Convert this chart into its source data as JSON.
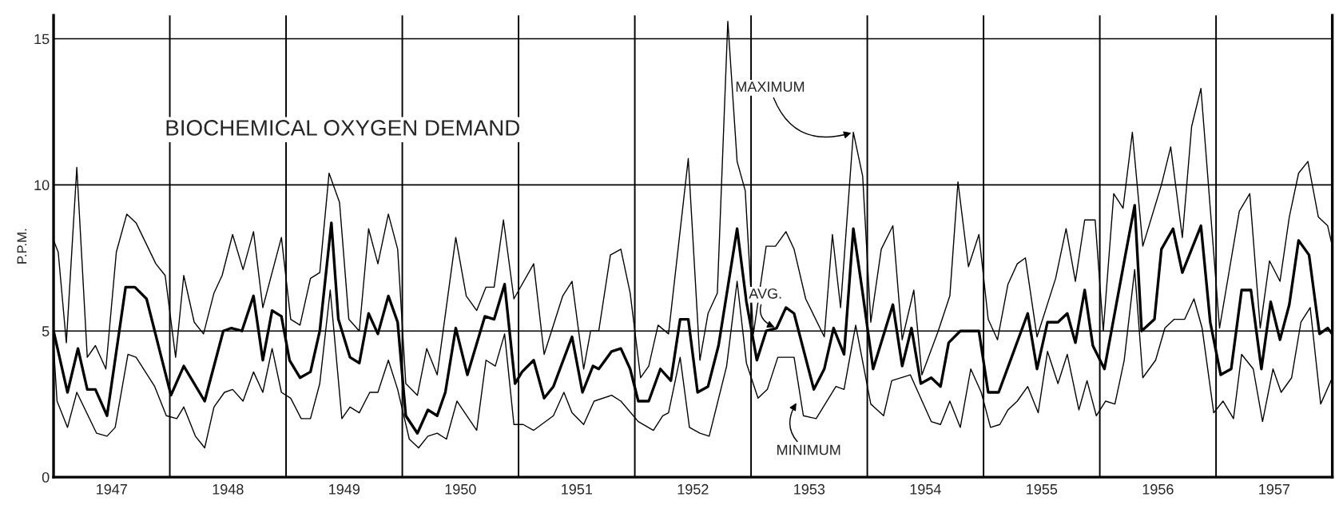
{
  "chart_data": {
    "type": "line",
    "title": "BIOCHEMICAL OXYGEN DEMAND",
    "ylabel": "P.P.M.",
    "xlim": [
      1947,
      1958
    ],
    "ylim": [
      0,
      15.8
    ],
    "yticks": [
      0,
      5,
      10,
      15
    ],
    "xticks": [
      {
        "value": 1947.5,
        "label": "1947"
      },
      {
        "value": 1948.5,
        "label": "1948"
      },
      {
        "value": 1949.5,
        "label": "1949"
      },
      {
        "value": 1950.5,
        "label": "1950"
      },
      {
        "value": 1951.5,
        "label": "1951"
      },
      {
        "value": 1952.5,
        "label": "1952"
      },
      {
        "value": 1953.5,
        "label": "1953"
      },
      {
        "value": 1954.5,
        "label": "1954"
      },
      {
        "value": 1955.5,
        "label": "1955"
      },
      {
        "value": 1956.5,
        "label": "1956"
      },
      {
        "value": 1957.5,
        "label": "1957"
      }
    ],
    "grid": "y",
    "legend": false,
    "ref_lines": [
      {
        "axis": "x",
        "value": 1948
      },
      {
        "axis": "x",
        "value": 1949
      },
      {
        "axis": "x",
        "value": 1950
      },
      {
        "axis": "x",
        "value": 1951
      },
      {
        "axis": "x",
        "value": 1952
      },
      {
        "axis": "x",
        "value": 1953
      },
      {
        "axis": "x",
        "value": 1954
      },
      {
        "axis": "x",
        "value": 1955
      },
      {
        "axis": "x",
        "value": 1956
      },
      {
        "axis": "x",
        "value": 1957
      }
    ],
    "annotations": [
      {
        "text": "MAXIMUM",
        "x": 1953.88,
        "y": 11.8
      },
      {
        "text": "AVG.",
        "x": 1953.22,
        "y": 5.1
      },
      {
        "text": "MINIMUM",
        "x": 1953.4,
        "y": 2.6
      }
    ],
    "series": [
      {
        "color": "#000000",
        "x": [
          1947.0,
          1947.04,
          1947.11,
          1947.2,
          1947.29,
          1947.36,
          1947.45,
          1947.54,
          1947.63,
          1947.71,
          1947.88,
          1947.96,
          1948.05,
          1948.12,
          1948.21,
          1948.29,
          1948.38,
          1948.45,
          1948.54,
          1948.63,
          1948.72,
          1948.8,
          1948.96,
          1949.04,
          1949.12,
          1949.21,
          1949.29,
          1949.37,
          1949.46,
          1949.54,
          1949.63,
          1949.71,
          1949.79,
          1949.88,
          1949.96,
          1950.03,
          1950.13,
          1950.21,
          1950.3,
          1950.46,
          1950.55,
          1950.64,
          1950.72,
          1950.79,
          1950.87,
          1950.96,
          1951.13,
          1951.22,
          1951.38,
          1951.46,
          1951.56,
          1951.62,
          1951.69,
          1951.79,
          1951.88,
          1951.96,
          1952.05,
          1952.12,
          1952.2,
          1952.29,
          1952.46,
          1952.56,
          1952.63,
          1952.71,
          1952.8,
          1952.88,
          1952.95,
          1953.02,
          1953.13,
          1953.21,
          1953.3,
          1953.37,
          1953.47,
          1953.63,
          1953.7,
          1953.77,
          1953.88,
          1953.96,
          1954.03,
          1954.12,
          1954.22,
          1954.3,
          1954.4,
          1954.47,
          1954.61,
          1954.71,
          1954.78,
          1954.87,
          1954.96,
          1955.04,
          1955.12,
          1955.21,
          1955.29,
          1955.36,
          1955.46,
          1955.62,
          1955.71,
          1955.79,
          1955.87,
          1955.96,
          1956.03,
          1956.12,
          1956.2,
          1956.28,
          1956.37,
          1956.53,
          1956.61,
          1956.71,
          1956.79,
          1956.87,
          1957.03,
          1957.2,
          1957.29,
          1957.38,
          1957.46,
          1957.55,
          1957.63,
          1957.71,
          1957.79,
          1957.88,
          1957.96,
          1958.0
        ],
        "values": [
          8.1,
          7.7,
          4.6,
          10.6,
          4.1,
          4.5,
          3.7,
          7.7,
          9.0,
          8.7,
          7.3,
          6.9,
          4.1,
          6.9,
          5.3,
          4.9,
          6.3,
          6.9,
          8.3,
          7.1,
          8.4,
          5.8,
          8.2,
          5.4,
          5.2,
          6.8,
          7.0,
          10.4,
          9.4,
          5.4,
          5.0,
          8.5,
          7.3,
          9.0,
          7.8,
          3.2,
          2.8,
          4.4,
          3.5,
          8.2,
          6.2,
          5.7,
          6.5,
          6.5,
          8.8,
          6.1,
          7.3,
          4.2,
          6.2,
          6.7,
          3.7,
          5.0,
          5.0,
          7.6,
          7.8,
          6.3,
          3.4,
          3.8,
          5.2,
          4.9,
          10.9,
          4.0,
          5.6,
          6.3,
          15.6,
          10.8,
          9.8,
          4.9,
          7.9,
          7.9,
          8.4,
          7.8,
          6.1,
          4.8,
          8.3,
          5.8,
          11.8,
          10.3,
          5.3,
          7.8,
          8.6,
          4.7,
          6.4,
          3.5,
          5.0,
          6.2,
          10.1,
          7.2,
          8.3,
          5.4,
          4.7,
          6.6,
          7.3,
          7.5,
          4.8,
          6.8,
          8.5,
          6.7,
          8.8,
          8.8,
          5.0,
          9.7,
          9.2,
          11.8,
          7.9,
          10.0,
          11.3,
          8.2,
          12.0,
          13.3,
          5.1,
          9.1,
          9.7,
          5.1,
          7.4,
          6.7,
          8.9,
          10.4,
          10.8,
          8.9,
          8.6,
          7.9
        ]
      },
      {
        "color": "#000000",
        "x": [
          1947.0,
          1947.12,
          1947.21,
          1947.29,
          1947.36,
          1947.46,
          1947.62,
          1947.7,
          1947.8,
          1948.01,
          1948.12,
          1948.3,
          1948.46,
          1948.53,
          1948.62,
          1948.72,
          1948.8,
          1948.88,
          1948.96,
          1949.03,
          1949.12,
          1949.21,
          1949.29,
          1949.39,
          1949.45,
          1949.55,
          1949.63,
          1949.71,
          1949.79,
          1949.88,
          1949.96,
          1950.03,
          1950.13,
          1950.22,
          1950.3,
          1950.37,
          1950.46,
          1950.56,
          1950.71,
          1950.79,
          1950.88,
          1950.97,
          1951.03,
          1951.13,
          1951.22,
          1951.3,
          1951.46,
          1951.55,
          1951.64,
          1951.69,
          1951.8,
          1951.88,
          1951.96,
          1952.03,
          1952.12,
          1952.22,
          1952.31,
          1952.39,
          1952.46,
          1952.54,
          1952.63,
          1952.72,
          1952.88,
          1952.96,
          1953.05,
          1953.13,
          1953.22,
          1953.3,
          1953.37,
          1953.54,
          1953.63,
          1953.71,
          1953.8,
          1953.88,
          1953.96,
          1954.05,
          1954.22,
          1954.3,
          1954.38,
          1954.46,
          1954.55,
          1954.63,
          1954.7,
          1954.8,
          1954.96,
          1955.04,
          1955.13,
          1955.38,
          1955.46,
          1955.55,
          1955.64,
          1955.72,
          1955.79,
          1955.87,
          1955.94,
          1956.04,
          1956.22,
          1956.3,
          1956.36,
          1956.47,
          1956.53,
          1956.63,
          1956.71,
          1956.87,
          1956.95,
          1957.04,
          1957.13,
          1957.22,
          1957.3,
          1957.39,
          1957.47,
          1957.55,
          1957.63,
          1957.71,
          1957.8,
          1957.89,
          1957.96,
          1958.0
        ],
        "values": [
          5.0,
          2.9,
          4.4,
          3.0,
          3.0,
          2.1,
          6.5,
          6.5,
          6.1,
          2.8,
          3.8,
          2.6,
          5.0,
          5.1,
          5.0,
          6.2,
          4.0,
          5.7,
          5.5,
          4.0,
          3.4,
          3.6,
          5.0,
          8.7,
          5.4,
          4.1,
          3.9,
          5.6,
          4.9,
          6.2,
          5.3,
          2.1,
          1.5,
          2.3,
          2.1,
          2.9,
          5.1,
          3.5,
          5.5,
          5.4,
          6.6,
          3.2,
          3.6,
          4.0,
          2.7,
          3.1,
          4.8,
          2.9,
          3.8,
          3.7,
          4.3,
          4.4,
          3.7,
          2.6,
          2.6,
          3.7,
          3.3,
          5.4,
          5.4,
          2.9,
          3.1,
          4.5,
          8.5,
          6.0,
          4.0,
          5.0,
          5.1,
          5.8,
          5.6,
          3.0,
          3.7,
          5.1,
          4.2,
          8.5,
          6.3,
          3.7,
          5.9,
          3.8,
          5.1,
          3.2,
          3.4,
          3.1,
          4.6,
          5.0,
          5.0,
          2.9,
          2.9,
          5.6,
          3.7,
          5.3,
          5.3,
          5.6,
          4.6,
          6.4,
          4.5,
          3.7,
          7.6,
          9.3,
          5.0,
          5.4,
          7.8,
          8.5,
          7.0,
          8.6,
          5.3,
          3.5,
          3.7,
          6.4,
          6.4,
          3.7,
          6.0,
          4.7,
          5.9,
          8.1,
          7.6,
          4.9,
          5.1,
          4.9
        ]
      },
      {
        "color": "#000000",
        "x": [
          1947.0,
          1947.03,
          1947.12,
          1947.2,
          1947.37,
          1947.46,
          1947.53,
          1947.64,
          1947.71,
          1947.87,
          1947.97,
          1948.06,
          1948.12,
          1948.22,
          1948.3,
          1948.38,
          1948.47,
          1948.54,
          1948.63,
          1948.72,
          1948.8,
          1948.88,
          1948.96,
          1949.04,
          1949.13,
          1949.21,
          1949.29,
          1949.38,
          1949.48,
          1949.55,
          1949.63,
          1949.72,
          1949.79,
          1949.88,
          1949.96,
          1950.06,
          1950.14,
          1950.22,
          1950.3,
          1950.38,
          1950.47,
          1950.64,
          1950.72,
          1950.8,
          1950.88,
          1950.96,
          1951.04,
          1951.13,
          1951.3,
          1951.39,
          1951.46,
          1951.56,
          1951.65,
          1951.8,
          1951.88,
          1952.03,
          1952.16,
          1952.24,
          1952.29,
          1952.39,
          1952.47,
          1952.56,
          1952.64,
          1952.79,
          1952.88,
          1952.96,
          1953.06,
          1953.14,
          1953.23,
          1953.37,
          1953.45,
          1953.56,
          1953.73,
          1953.8,
          1953.9,
          1954.03,
          1954.14,
          1954.21,
          1954.37,
          1954.55,
          1954.63,
          1954.71,
          1954.8,
          1954.89,
          1954.98,
          1955.06,
          1955.14,
          1955.21,
          1955.29,
          1955.38,
          1955.47,
          1955.55,
          1955.64,
          1955.72,
          1955.82,
          1955.89,
          1955.97,
          1956.05,
          1956.13,
          1956.21,
          1956.3,
          1956.37,
          1956.48,
          1956.56,
          1956.64,
          1956.73,
          1956.81,
          1956.88,
          1956.98,
          1957.06,
          1957.15,
          1957.22,
          1957.32,
          1957.4,
          1957.49,
          1957.56,
          1957.65,
          1957.73,
          1957.81,
          1957.9,
          1958.0
        ],
        "values": [
          4.5,
          2.6,
          1.7,
          2.9,
          1.5,
          1.4,
          1.7,
          4.2,
          4.1,
          3.1,
          2.1,
          2.0,
          2.4,
          1.4,
          1.0,
          2.4,
          2.9,
          3.0,
          2.6,
          3.6,
          2.9,
          4.4,
          2.9,
          2.7,
          2.0,
          2.0,
          3.2,
          6.4,
          2.0,
          2.4,
          2.2,
          2.9,
          2.9,
          4.0,
          3.0,
          1.3,
          1.0,
          1.4,
          1.5,
          1.3,
          2.6,
          1.6,
          4.0,
          3.8,
          4.9,
          1.8,
          1.8,
          1.6,
          2.1,
          2.9,
          2.2,
          1.8,
          2.6,
          2.8,
          2.6,
          1.9,
          1.6,
          2.1,
          2.2,
          4.1,
          1.7,
          1.5,
          1.4,
          3.8,
          6.7,
          3.9,
          2.7,
          3.0,
          4.1,
          4.1,
          2.1,
          2.0,
          3.1,
          3.0,
          5.2,
          2.5,
          2.1,
          3.3,
          3.5,
          1.9,
          1.8,
          2.6,
          1.7,
          3.7,
          2.9,
          1.7,
          1.8,
          2.3,
          2.6,
          3.1,
          2.2,
          4.3,
          3.2,
          4.2,
          2.3,
          3.3,
          2.1,
          2.6,
          2.5,
          4.0,
          7.1,
          3.4,
          4.0,
          5.1,
          5.4,
          5.4,
          6.1,
          5.1,
          2.2,
          2.6,
          2.0,
          4.2,
          3.7,
          1.9,
          3.7,
          2.9,
          3.4,
          5.3,
          5.8,
          2.5,
          3.4
        ]
      }
    ]
  }
}
